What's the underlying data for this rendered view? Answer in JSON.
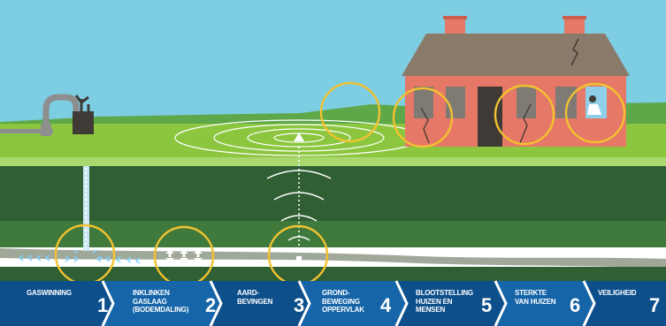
{
  "steps": [
    {
      "label": "GASWINNING",
      "number": "1"
    },
    {
      "label": "INKLINKEN\nGASLAAG\n(BODEMDALING)",
      "number": "2"
    },
    {
      "label": "AARD-\nBEVINGEN",
      "number": "3"
    },
    {
      "label": "GROND-\nBEWEGING\nOPPERVLAK",
      "number": "4"
    },
    {
      "label": "BLOOTSTELLING\nHUIZEN EN\nMENSEN",
      "number": "5"
    },
    {
      "label": "STERKTE\nVAN HUIZEN",
      "number": "6"
    },
    {
      "label": "VEILIGHEID",
      "number": "7"
    }
  ],
  "colors": {
    "sky": "#7dcde3",
    "grass": "#8cc63f",
    "deep_soil": "#2f5f33",
    "gas_layer": "#a0a89a",
    "band_dark": "#0d4f8b",
    "band_light": "#1565a8",
    "highlight_ring": "#f2c230",
    "house_wall": "#e57866"
  }
}
